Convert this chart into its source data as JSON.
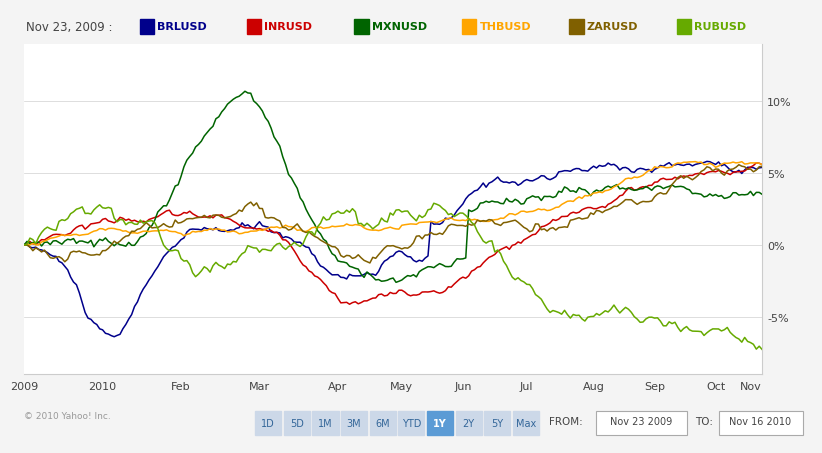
{
  "title": "Nov 23, 2009 :",
  "legend_items": [
    "BRLUSD",
    "INRUSD",
    "MXNUSD",
    "THBUSD",
    "ZARUSD",
    "RUBUSD"
  ],
  "legend_colors": [
    "#00008B",
    "#CC0000",
    "#006400",
    "#FFA500",
    "#806000",
    "#66AA00"
  ],
  "background_color": "#f4f4f4",
  "plot_bg": "#ffffff",
  "footer_text": "© 2010 Yahoo! Inc.",
  "ytick_vals": [
    -5,
    0,
    5,
    10
  ],
  "ytick_labels": [
    "-5%",
    "0%",
    "5%",
    "10%"
  ],
  "ylim": [
    -9,
    14
  ],
  "xtick_positions": [
    0,
    27,
    54,
    81,
    108,
    130,
    151,
    173,
    196,
    217,
    238,
    250
  ],
  "xtick_labels": [
    "2009",
    "2010",
    "Feb",
    "Mar",
    "Apr",
    "May",
    "Jun",
    "Jul",
    "Aug",
    "Sep",
    "Oct",
    "Nov"
  ],
  "bottom_buttons": [
    "1D",
    "5D",
    "1M",
    "3M",
    "6M",
    "YTD",
    "1Y",
    "2Y",
    "5Y",
    "Max"
  ],
  "active_button": "1Y",
  "from_text": "Nov 23 2009",
  "to_text": "Nov 16 2010"
}
